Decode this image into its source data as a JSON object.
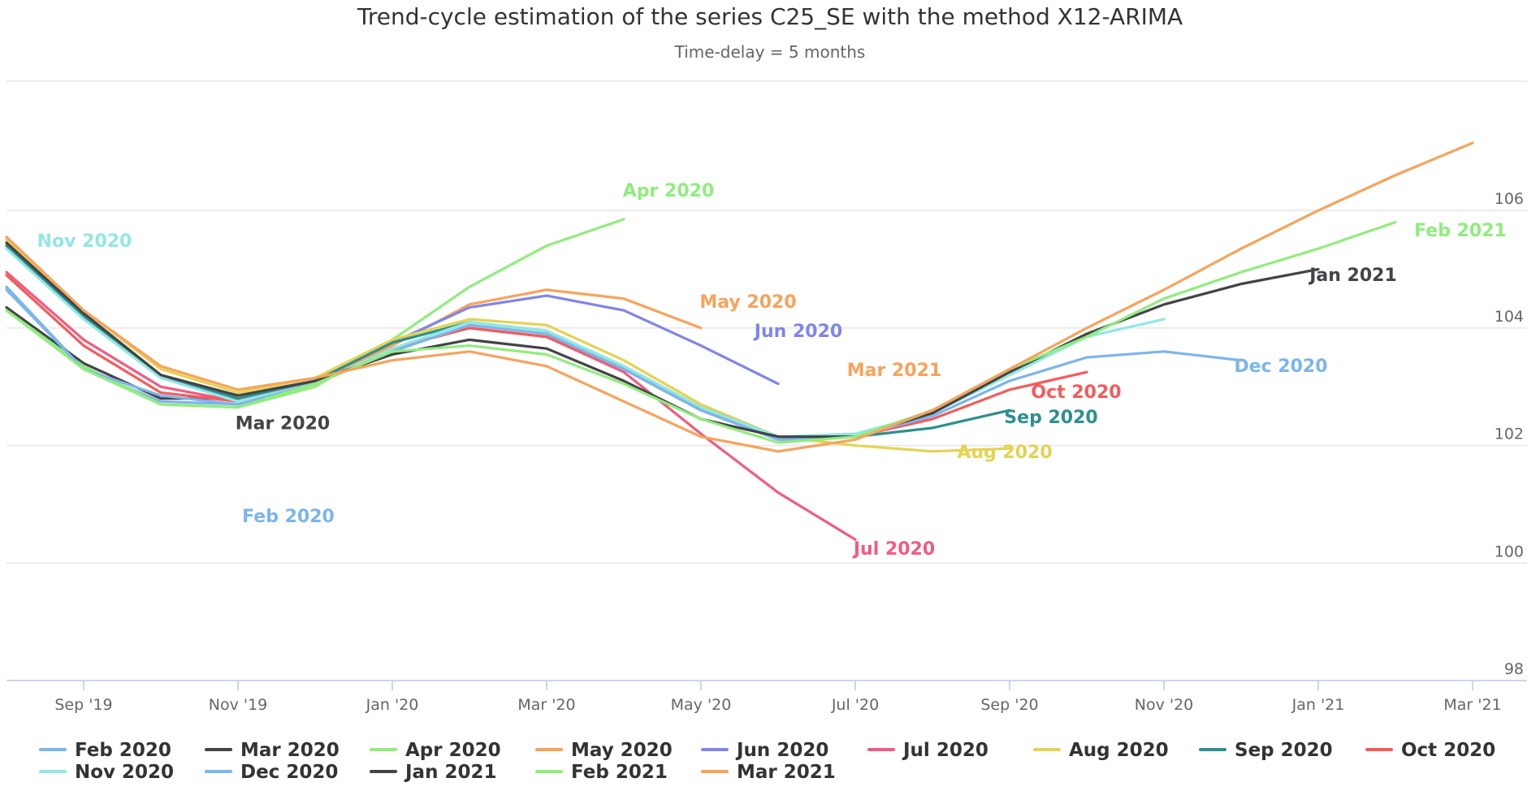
{
  "chart_data": {
    "type": "line",
    "title": "Trend-cycle estimation of the series C25_SE with the method X12-ARIMA",
    "subtitle": "Time-delay = 5 months",
    "x_categories": [
      "Aug 2019",
      "Sep 2019",
      "Oct 2019",
      "Nov 2019",
      "Dec 2019",
      "Jan 2020",
      "Feb 2020",
      "Mar 2020",
      "Apr 2020",
      "May 2020",
      "Jun 2020",
      "Jul 2020",
      "Aug 2020",
      "Sep 2020",
      "Oct 2020",
      "Nov 2020",
      "Dec 2020",
      "Jan 2021",
      "Feb 2021",
      "Mar 2021"
    ],
    "x_ticks": [
      "Sep '19",
      "Nov '19",
      "Jan '20",
      "Mar '20",
      "May '20",
      "Jul '20",
      "Sep '20",
      "Nov '20",
      "Jan '21",
      "Mar '21"
    ],
    "y_ticks": [
      98,
      100,
      102,
      104,
      106
    ],
    "ylim": [
      98,
      108.2
    ],
    "ylabel": "",
    "xlabel": "",
    "grid": "horizontal",
    "legend_position": "bottom",
    "series": [
      {
        "name": "Feb 2020",
        "color": "#7cb5ec",
        "start": 0,
        "label_position": "bottom-left",
        "values": [
          104.7,
          103.3,
          102.75,
          102.7
        ]
      },
      {
        "name": "Mar 2020",
        "color": "#434348",
        "start": 0,
        "label_position": "below-right",
        "values": [
          104.35,
          103.4,
          102.8,
          102.8
        ]
      },
      {
        "name": "Apr 2020",
        "color": "#90ed7d",
        "start": 0,
        "label_position": "above",
        "values": [
          104.3,
          103.35,
          102.7,
          102.65,
          103.0,
          103.8,
          104.7,
          105.4,
          105.85
        ]
      },
      {
        "name": "May 2020",
        "color": "#f7a35c",
        "start": 0,
        "label_position": "above",
        "values": [
          105.5,
          104.2,
          103.2,
          102.85,
          103.1,
          103.7,
          104.4,
          104.65,
          104.5,
          104.0
        ]
      },
      {
        "name": "Jun 2020",
        "color": "#8085e9",
        "start": 0,
        "label_position": "above",
        "values": [
          105.4,
          104.2,
          103.15,
          102.8,
          103.1,
          103.75,
          104.35,
          104.55,
          104.3,
          103.7,
          103.05
        ]
      },
      {
        "name": "Jul 2020",
        "color": "#f15c80",
        "start": 0,
        "label_position": "below",
        "values": [
          104.95,
          103.8,
          103.0,
          102.75,
          103.05,
          103.65,
          104.0,
          103.85,
          103.25,
          102.2,
          101.2,
          100.4
        ]
      },
      {
        "name": "Aug 2020",
        "color": "#e4d354",
        "start": 0,
        "label_position": "below",
        "values": [
          105.5,
          104.3,
          103.3,
          102.9,
          103.15,
          103.8,
          104.15,
          104.05,
          103.45,
          102.7,
          102.15,
          102.0,
          101.9,
          101.95
        ]
      },
      {
        "name": "Sep 2020",
        "color": "#2b908f",
        "start": 0,
        "label_position": "below",
        "values": [
          105.4,
          104.2,
          103.2,
          102.8,
          103.1,
          103.75,
          104.1,
          103.95,
          103.35,
          102.65,
          102.15,
          102.15,
          102.3,
          102.6
        ]
      },
      {
        "name": "Oct 2020",
        "color": "#f45b5b",
        "start": 0,
        "label_position": "above",
        "values": [
          104.9,
          103.7,
          102.9,
          102.75,
          103.05,
          103.65,
          104.0,
          103.85,
          103.3,
          102.6,
          102.1,
          102.15,
          102.45,
          102.95,
          103.25
        ]
      },
      {
        "name": "Nov 2020",
        "color": "#91e8e1",
        "start": 0,
        "label_position": "above",
        "values": [
          105.35,
          104.15,
          103.15,
          102.75,
          103.05,
          103.65,
          104.1,
          103.95,
          103.35,
          102.65,
          102.15,
          102.2,
          102.55,
          103.2,
          103.85,
          104.15
        ]
      },
      {
        "name": "Dec 2020",
        "color": "#7cb5ec",
        "start": 0,
        "label_position": "below",
        "values": [
          104.65,
          103.3,
          102.85,
          102.7,
          103.05,
          103.6,
          104.05,
          103.9,
          103.3,
          102.6,
          102.1,
          102.15,
          102.5,
          103.1,
          103.5,
          103.6,
          103.45
        ]
      },
      {
        "name": "Jan 2021",
        "color": "#434348",
        "start": 0,
        "label_position": "below",
        "values": [
          105.45,
          104.25,
          103.2,
          102.85,
          103.1,
          103.55,
          103.8,
          103.65,
          103.1,
          102.45,
          102.15,
          102.15,
          102.55,
          103.25,
          103.9,
          104.4,
          104.75,
          105.0
        ]
      },
      {
        "name": "Feb 2021",
        "color": "#90ed7d",
        "start": 0,
        "label_position": "below",
        "values": [
          104.3,
          103.3,
          102.7,
          102.65,
          103.05,
          103.6,
          103.7,
          103.55,
          103.05,
          102.45,
          102.05,
          102.15,
          102.6,
          103.3,
          103.85,
          104.5,
          104.95,
          105.35,
          105.8
        ]
      },
      {
        "name": "Mar 2021",
        "color": "#f7a35c",
        "start": 0,
        "label_position": "above",
        "values": [
          105.55,
          104.3,
          103.35,
          102.95,
          103.15,
          103.45,
          103.6,
          103.35,
          102.75,
          102.15,
          101.9,
          102.1,
          102.6,
          103.3,
          104.0,
          104.65,
          105.35,
          106.0,
          106.6,
          107.15
        ]
      }
    ]
  }
}
